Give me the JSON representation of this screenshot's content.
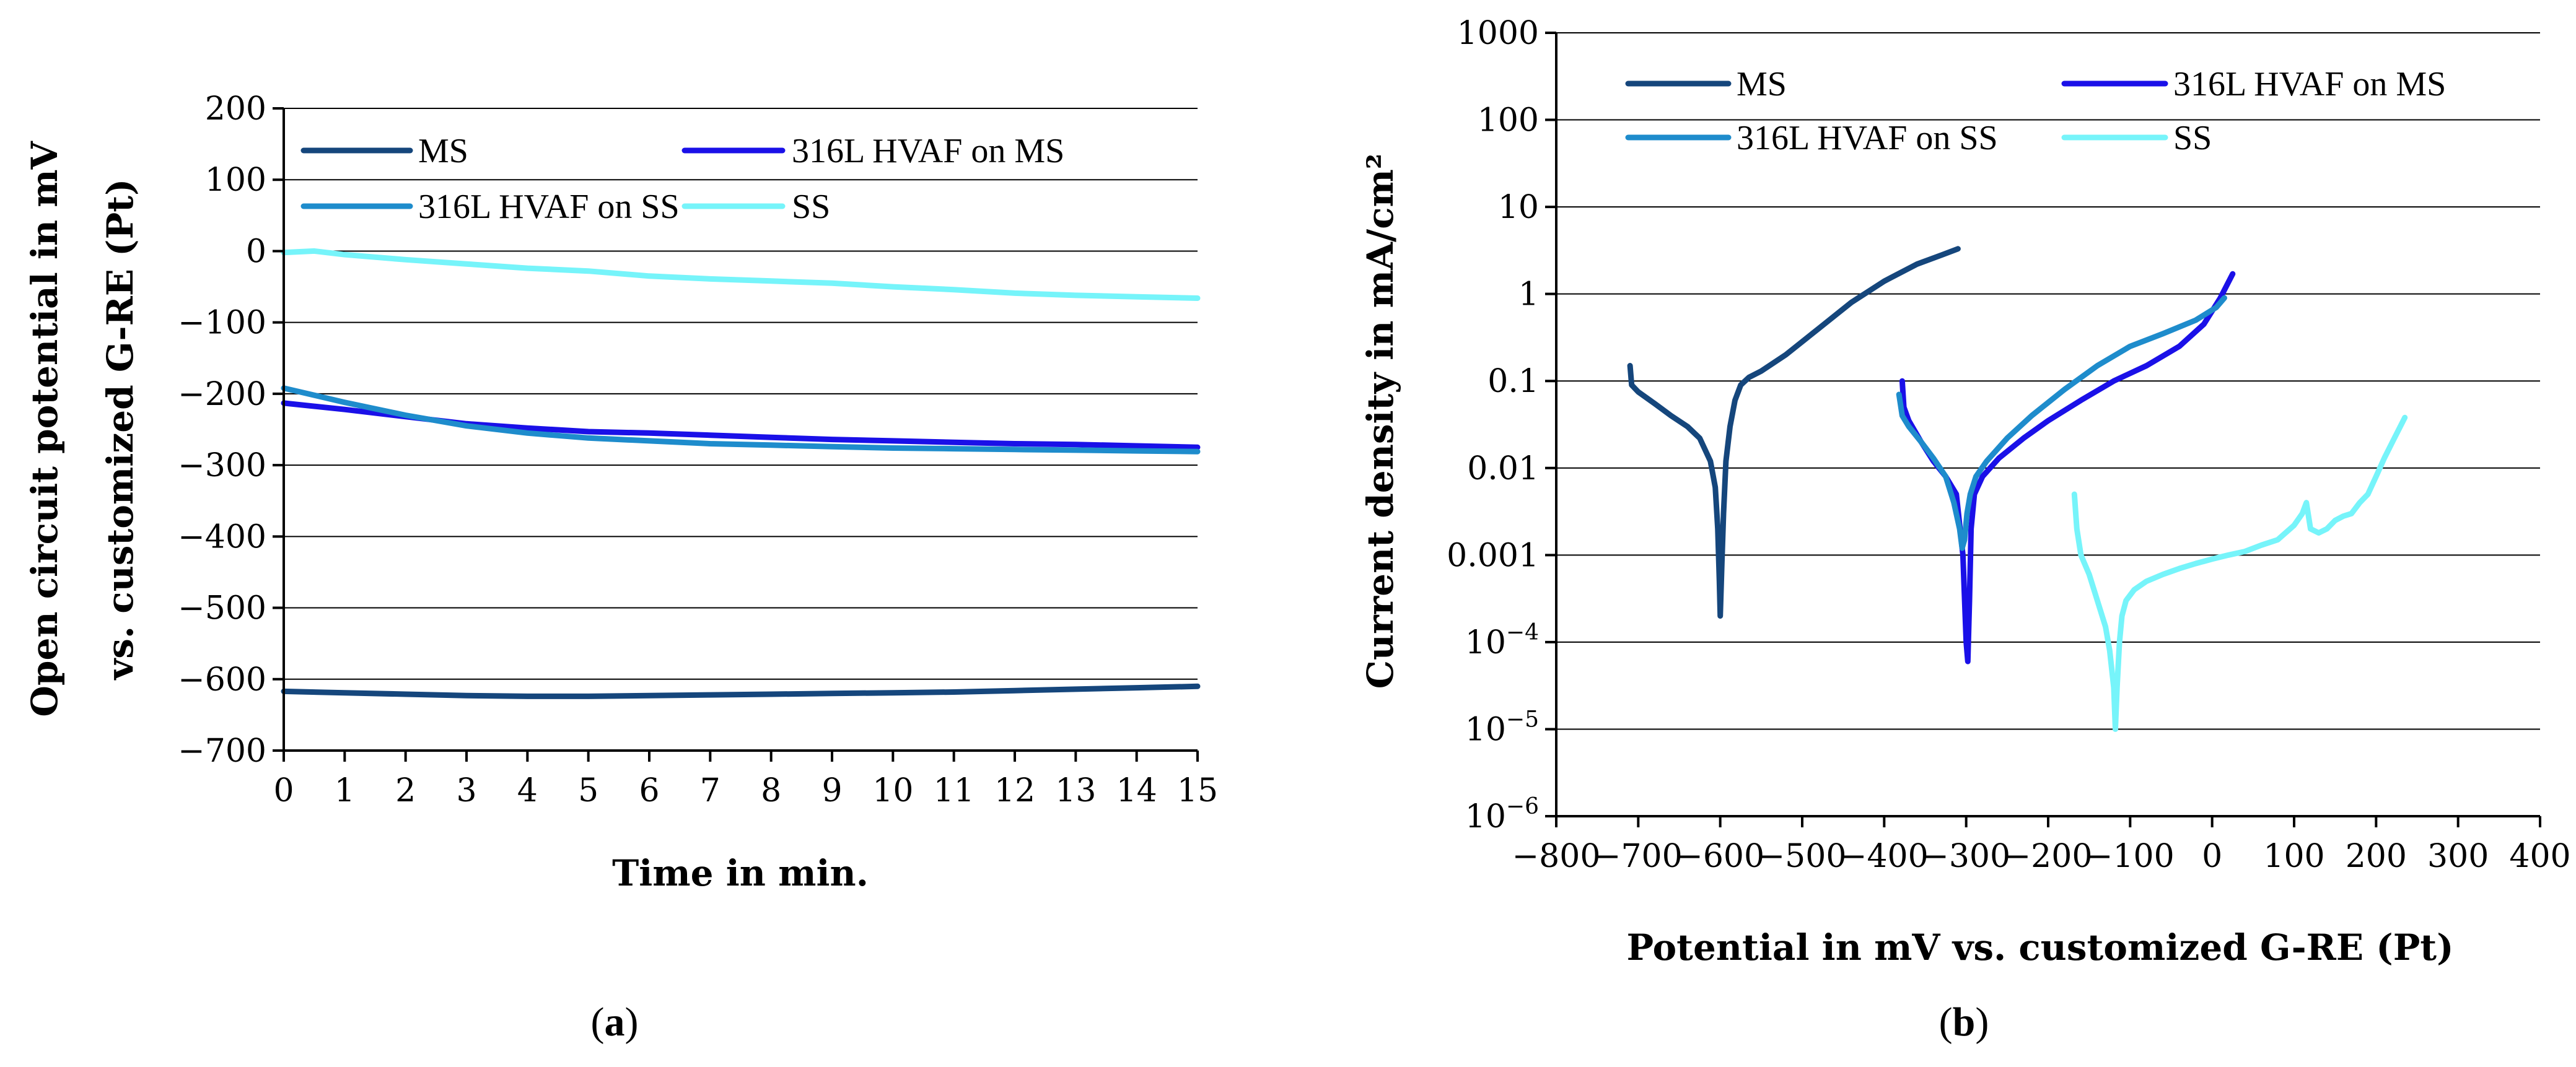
{
  "colors": {
    "MS": "#15467c",
    "HVAF_MS": "#1a10e8",
    "HVAF_SS": "#1e8ccc",
    "SS": "#76f4fa"
  },
  "chart_data": [
    {
      "type": "line",
      "panel": "a",
      "caption": {
        "open": "(",
        "letter": "a",
        "close": ")"
      },
      "title": "",
      "xlabel": "Time in min.",
      "ylabel": [
        "Open circuit potential in mV",
        "vs. customized G-RE (Pt)"
      ],
      "xlim": [
        0,
        15
      ],
      "ylim": [
        -700,
        200
      ],
      "xticks": [
        "0",
        "1",
        "2",
        "3",
        "4",
        "5",
        "6",
        "7",
        "8",
        "9",
        "10",
        "11",
        "12",
        "13",
        "14",
        "15"
      ],
      "yticks": [
        "200",
        "100",
        "0",
        "−100",
        "−200",
        "−300",
        "−400",
        "−500",
        "−600",
        "−700"
      ],
      "ytick_values": [
        200,
        100,
        0,
        -100,
        -200,
        -300,
        -400,
        -500,
        -600,
        -700
      ],
      "grid": "horizontal",
      "legend": "top",
      "series": [
        {
          "name": "MS",
          "color_key": "MS",
          "x": [
            0,
            1,
            2,
            3,
            4,
            5,
            6,
            7,
            8,
            9,
            10,
            11,
            12,
            13,
            14,
            15
          ],
          "y": [
            -617,
            -619,
            -621,
            -623,
            -624,
            -624,
            -623,
            -622,
            -621,
            -620,
            -619,
            -618,
            -616,
            -614,
            -612,
            -610
          ]
        },
        {
          "name": "316L HVAF on MS",
          "color_key": "HVAF_MS",
          "x": [
            0,
            1,
            2,
            3,
            4,
            5,
            6,
            7,
            8,
            9,
            10,
            11,
            12,
            13,
            14,
            15
          ],
          "y": [
            -213,
            -222,
            -232,
            -242,
            -248,
            -253,
            -255,
            -258,
            -261,
            -264,
            -266,
            -268,
            -270,
            -271,
            -273,
            -275
          ]
        },
        {
          "name": "316L HVAF on SS",
          "color_key": "HVAF_SS",
          "x": [
            0,
            1,
            2,
            3,
            4,
            5,
            6,
            7,
            8,
            9,
            10,
            11,
            12,
            13,
            14,
            15
          ],
          "y": [
            -192,
            -212,
            -230,
            -245,
            -255,
            -262,
            -266,
            -270,
            -272,
            -274,
            -276,
            -277,
            -278,
            -279,
            -280,
            -281
          ]
        },
        {
          "name": "SS",
          "color_key": "SS",
          "x": [
            0,
            0.5,
            1,
            2,
            3,
            4,
            5,
            6,
            7,
            8,
            9,
            10,
            11,
            12,
            13,
            14,
            15
          ],
          "y": [
            -2,
            0,
            -5,
            -12,
            -18,
            -24,
            -28,
            -35,
            -39,
            -42,
            -45,
            -50,
            -54,
            -59,
            -62,
            -64,
            -66
          ]
        }
      ]
    },
    {
      "type": "line",
      "panel": "b",
      "caption": {
        "open": "(",
        "letter": "b",
        "close": ")"
      },
      "title": "",
      "xlabel": "Potential in mV vs. customized G-RE (Pt)",
      "ylabel": "Current density in mA/cm²",
      "yscale": "log",
      "xlim": [
        -800,
        400
      ],
      "ylim": [
        1e-06,
        1000
      ],
      "xticks": [
        "−800",
        "−700",
        "−600",
        "−500",
        "−400",
        "−300",
        "−200",
        "−100",
        "0",
        "100",
        "200",
        "300",
        "400"
      ],
      "yticks": [
        {
          "value": 1000,
          "label": "1000"
        },
        {
          "value": 100,
          "label": "100"
        },
        {
          "value": 10,
          "label": "10"
        },
        {
          "value": 1,
          "label": "1"
        },
        {
          "value": 0.1,
          "label": "0.1"
        },
        {
          "value": 0.01,
          "label": "0.01"
        },
        {
          "value": 0.001,
          "label": "0.001"
        },
        {
          "value": 0.0001,
          "base": "10",
          "exp": "−4"
        },
        {
          "value": 1e-05,
          "base": "10",
          "exp": "−5"
        },
        {
          "value": 1e-06,
          "base": "10",
          "exp": "−6"
        }
      ],
      "grid": "horizontal",
      "legend": "top",
      "series": [
        {
          "name": "MS",
          "color_key": "MS",
          "x": [
            -710,
            -708,
            -700,
            -680,
            -660,
            -640,
            -625,
            -612,
            -606,
            -603,
            -601,
            -600,
            -598,
            -596,
            -593,
            -588,
            -582,
            -575,
            -565,
            -550,
            -520,
            -480,
            -440,
            -400,
            -360,
            -330,
            -310
          ],
          "y": [
            0.15,
            0.09,
            0.075,
            0.055,
            0.04,
            0.03,
            0.022,
            0.012,
            0.006,
            0.002,
            0.0005,
            0.0002,
            0.0008,
            0.003,
            0.012,
            0.03,
            0.06,
            0.09,
            0.11,
            0.13,
            0.2,
            0.4,
            0.8,
            1.4,
            2.2,
            2.8,
            3.3
          ]
        },
        {
          "name": "316L HVAF on MS",
          "color_key": "HVAF_MS",
          "x": [
            -378,
            -376,
            -370,
            -355,
            -340,
            -325,
            -312,
            -304,
            -300,
            -298,
            -296,
            -294,
            -290,
            -280,
            -260,
            -230,
            -200,
            -160,
            -120,
            -80,
            -40,
            -10,
            10,
            25
          ],
          "y": [
            0.1,
            0.05,
            0.035,
            0.02,
            0.012,
            0.008,
            0.005,
            0.001,
            0.0001,
            6e-05,
            0.0003,
            0.002,
            0.005,
            0.008,
            0.013,
            0.022,
            0.035,
            0.06,
            0.1,
            0.15,
            0.25,
            0.45,
            0.9,
            1.7
          ]
        },
        {
          "name": "316L HVAF on SS",
          "color_key": "HVAF_SS",
          "x": [
            -382,
            -378,
            -370,
            -355,
            -340,
            -325,
            -315,
            -308,
            -305,
            -302,
            -299,
            -295,
            -288,
            -275,
            -250,
            -220,
            -180,
            -140,
            -100,
            -60,
            -20,
            5,
            15
          ],
          "y": [
            0.07,
            0.04,
            0.03,
            0.02,
            0.013,
            0.008,
            0.004,
            0.002,
            0.0012,
            0.0015,
            0.003,
            0.005,
            0.008,
            0.012,
            0.022,
            0.04,
            0.08,
            0.15,
            0.25,
            0.35,
            0.5,
            0.7,
            0.9
          ]
        },
        {
          "name": "SS",
          "color_key": "SS",
          "x": [
            -168,
            -165,
            -160,
            -150,
            -140,
            -130,
            -125,
            -120,
            -118,
            -116,
            -113,
            -110,
            -105,
            -95,
            -80,
            -60,
            -40,
            -20,
            0,
            20,
            40,
            60,
            80,
            100,
            110,
            115,
            120,
            130,
            140,
            150,
            160,
            170,
            180,
            190,
            200,
            210,
            220,
            235
          ],
          "y": [
            0.005,
            0.002,
            0.001,
            0.0006,
            0.0003,
            0.00015,
            8e-05,
            3e-05,
            1e-05,
            3e-05,
            0.0001,
            0.0002,
            0.0003,
            0.0004,
            0.0005,
            0.0006,
            0.0007,
            0.0008,
            0.0009,
            0.001,
            0.0011,
            0.0013,
            0.0015,
            0.0022,
            0.003,
            0.004,
            0.002,
            0.0018,
            0.002,
            0.0025,
            0.0028,
            0.003,
            0.004,
            0.005,
            0.008,
            0.013,
            0.02,
            0.038
          ]
        }
      ]
    }
  ]
}
